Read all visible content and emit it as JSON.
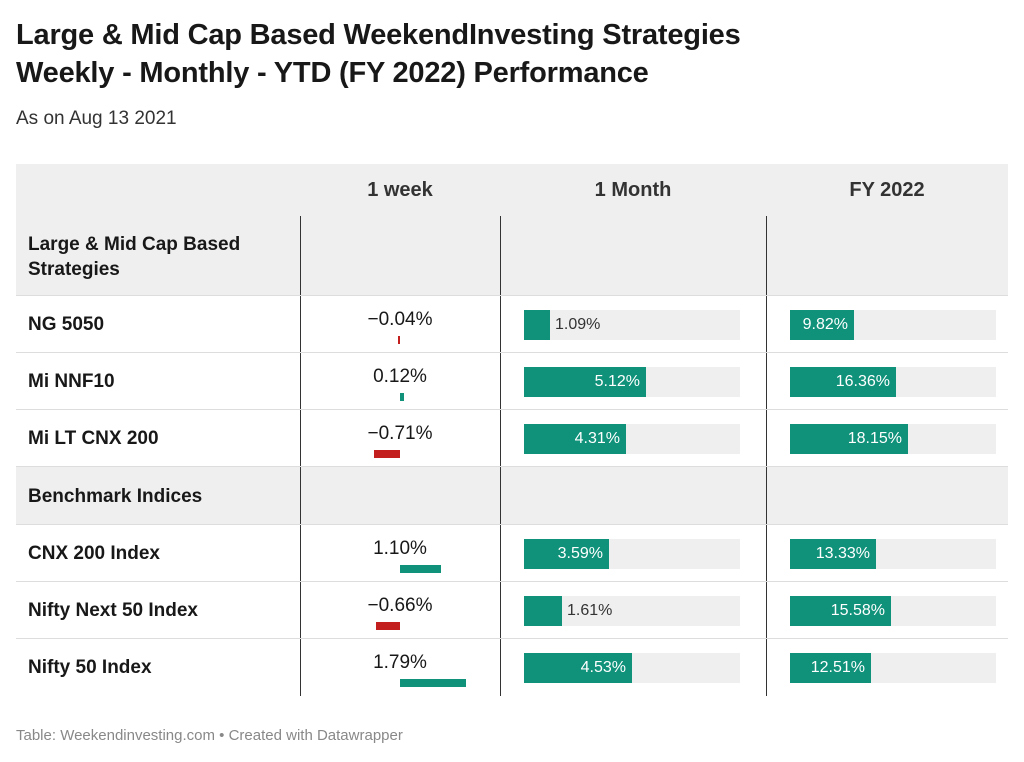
{
  "title_line1": "Large & Mid Cap Based WeekendInvesting Strategies",
  "title_line2": "Weekly - Monthly - YTD (FY 2022) Performance",
  "subtitle": "As on Aug 13 2021",
  "footer": "Table: Weekendinvesting.com • Created with Datawrapper",
  "colors": {
    "positive": "#0f917a",
    "negative": "#c41f1f",
    "track": "#efefef",
    "header_bg": "#efefef"
  },
  "chart_data": {
    "type": "table",
    "columns": [
      "",
      "1 week",
      "1 Month",
      "FY 2022"
    ],
    "groups": [
      {
        "label": "Large & Mid Cap Based Strategies",
        "rows": [
          {
            "name": "NG 5050",
            "week": -0.04,
            "month": 1.09,
            "fy": 9.82,
            "week_label": "−0.04%",
            "month_label": "1.09%",
            "fy_label": "9.82%"
          },
          {
            "name": "Mi NNF10",
            "week": 0.12,
            "month": 5.12,
            "fy": 16.36,
            "week_label": "0.12%",
            "month_label": "5.12%",
            "fy_label": "16.36%"
          },
          {
            "name": "Mi LT CNX 200",
            "week": -0.71,
            "month": 4.31,
            "fy": 18.15,
            "week_label": "−0.71%",
            "month_label": "4.31%",
            "fy_label": "18.15%"
          }
        ]
      },
      {
        "label": "Benchmark Indices",
        "rows": [
          {
            "name": "CNX 200 Index",
            "week": 1.1,
            "month": 3.59,
            "fy": 13.33,
            "week_label": "1.10%",
            "month_label": "3.59%",
            "fy_label": "13.33%"
          },
          {
            "name": "Nifty Next 50 Index",
            "week": -0.66,
            "month": 1.61,
            "fy": 15.58,
            "week_label": "−0.66%",
            "month_label": "1.61%",
            "fy_label": "15.58%"
          },
          {
            "name": "Nifty 50 Index",
            "week": 1.79,
            "month": 4.53,
            "fy": 12.51,
            "week_label": "1.79%",
            "month_label": "4.53%",
            "fy_label": "12.51%"
          }
        ]
      }
    ],
    "scales": {
      "week_max_abs": 1.79,
      "month_max": 9.1,
      "fy_max": 31.8
    }
  }
}
